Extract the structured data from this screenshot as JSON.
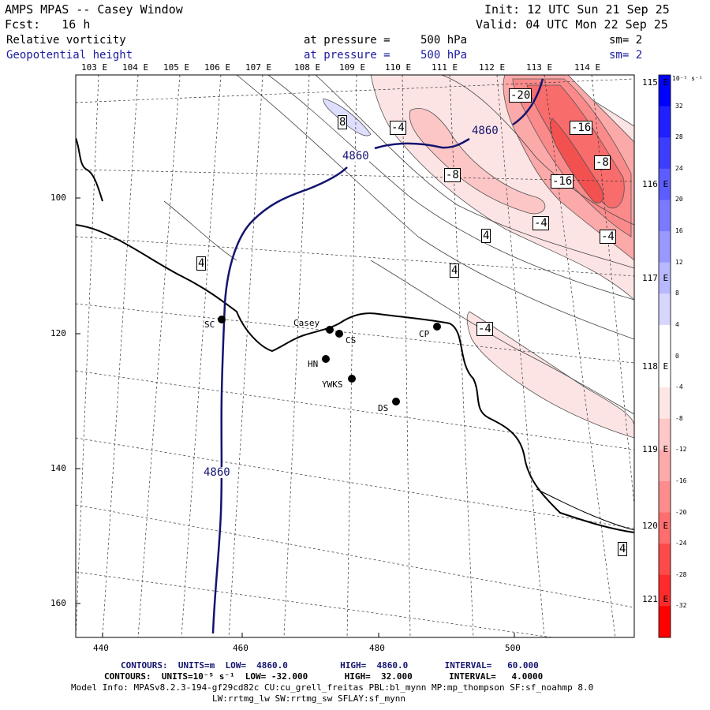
{
  "header": {
    "left_line1": "AMPS MPAS -- Casey Window",
    "left_line2": "Fcst:   16 h",
    "right_line1": "Init: 12 UTC Sun 21 Sep 25",
    "right_line2": "Valid: 04 UTC Mon 22 Sep 25"
  },
  "fields": [
    {
      "name": "Relative vorticity",
      "pressure_label": "at pressure =",
      "pressure": "500 hPa",
      "smooth": "sm= 2"
    },
    {
      "name": "Geopotential height",
      "pressure_label": "at pressure =",
      "pressure": "500 hPa",
      "smooth": "sm= 2"
    }
  ],
  "lon_labels": [
    "103 E",
    "104 E",
    "105 E",
    "106 E",
    "107 E",
    "108 E",
    "109 E",
    "110 E",
    "111 E",
    "112 E",
    "113 E",
    "114 E"
  ],
  "lat_labels_right": [
    "115 E",
    "116 E",
    "117 E",
    "118 E",
    "119 E",
    "120 E",
    "121 E"
  ],
  "x_axis": {
    "ticks": [
      "440",
      "460",
      "480",
      "500"
    ]
  },
  "y_axis": {
    "ticks": [
      "100",
      "120",
      "140",
      "160"
    ]
  },
  "stations": [
    {
      "name": "SC"
    },
    {
      "name": "Casey"
    },
    {
      "name": "CS"
    },
    {
      "name": "HN"
    },
    {
      "name": "YWKS"
    },
    {
      "name": "DS"
    },
    {
      "name": "CP"
    }
  ],
  "height_contour_labels": [
    "4860",
    "4860",
    "4860"
  ],
  "vorticity_labels": [
    "-20",
    "8",
    "-4",
    "-16",
    "-8",
    "-8",
    "-16",
    "-4",
    "4",
    "-4",
    "4",
    "4",
    "-4",
    "4"
  ],
  "colorbar": {
    "unit": "10⁻⁵ s⁻¹",
    "labels": [
      "32",
      "28",
      "24",
      "20",
      "16",
      "12",
      "8",
      "4",
      "0",
      "-4",
      "-8",
      "-12",
      "-16",
      "-20",
      "-24",
      "-28",
      "-32"
    ],
    "colors": [
      "#0000ff",
      "#1f1fff",
      "#3d3dff",
      "#5c5cff",
      "#7a7aff",
      "#9999ff",
      "#b8b8ff",
      "#d6d6ff",
      "#ffffff",
      "#ffffff",
      "#ffe6e6",
      "#ffc8c8",
      "#ffaaaa",
      "#ff8c8c",
      "#ff6e6e",
      "#ff4a4a",
      "#ff2a2a",
      "#ff0000"
    ]
  },
  "footer": {
    "line1": "CONTOURS:  UNITS=m  LOW=  4860.0          HIGH=  4860.0       INTERVAL=   60.000",
    "line2": "CONTOURS:  UNITS=10⁻⁵ s⁻¹  LOW= -32.000       HIGH=  32.000       INTERVAL=   4.0000",
    "line3": "Model Info: MPASv8.2.3-194-gf29cd82c CU:cu_grell_freitas PBL:bl_mynn MP:mp_thompson SF:sf_noahmp 8.0",
    "line4": "LW:rrtmg_lw SW:rrtmg_sw SFLAY:sf_mynn"
  },
  "colors": {
    "height_contour": "#141470",
    "coast": "#000000",
    "positive": "#0000ff",
    "negative": "#ff0000"
  }
}
